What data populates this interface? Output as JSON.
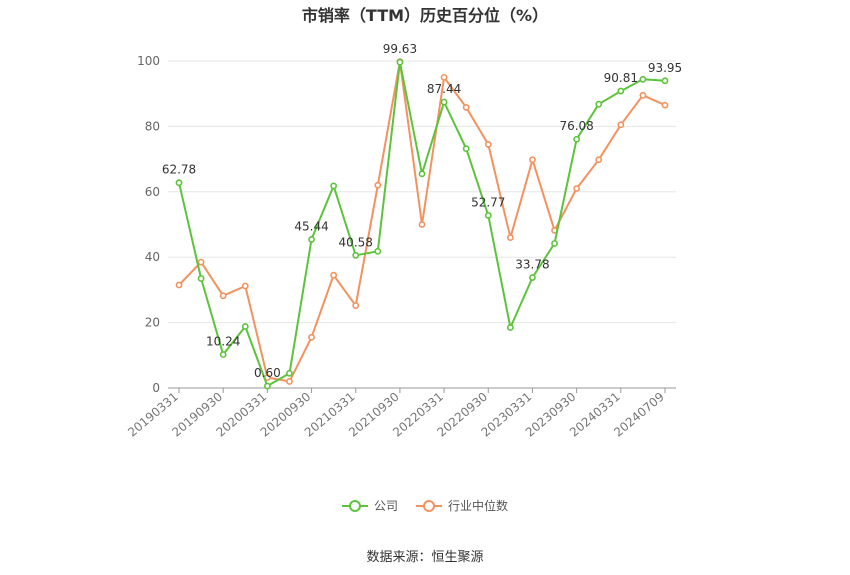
{
  "title": "市销率（TTM）历史百分位（%）",
  "source": "数据来源：恒生聚源",
  "colors": {
    "company": "#5cc43b",
    "industry": "#f4925f",
    "grid": "#e6e6e6",
    "axis": "#999999"
  },
  "chart_data": {
    "type": "line",
    "title": "市销率（TTM）历史百分位（%）",
    "ylim": [
      0,
      100
    ],
    "yticks": [
      0,
      20,
      40,
      60,
      80,
      100
    ],
    "x": [
      "20190331",
      "20190630",
      "20190930",
      "20191231",
      "20200331",
      "20200630",
      "20200930",
      "20201231",
      "20210331",
      "20210630",
      "20210930",
      "20211231",
      "20220331",
      "20220630",
      "20220930",
      "20221231",
      "20230331",
      "20230630",
      "20230930",
      "20231231",
      "20240331",
      "20240630",
      "20240709"
    ],
    "x_tick_labels": [
      "20190331",
      "20190930",
      "20200331",
      "20200930",
      "20210331",
      "20210930",
      "20220331",
      "20220930",
      "20230331",
      "20230930",
      "20240331",
      "20240709"
    ],
    "grid": true,
    "legend_position": "bottom",
    "series": [
      {
        "name": "公司",
        "color": "#5cc43b",
        "values": [
          62.78,
          33.5,
          10.24,
          18.8,
          0.6,
          4.5,
          45.44,
          61.8,
          40.58,
          41.8,
          99.63,
          65.5,
          87.44,
          73.2,
          52.77,
          18.5,
          33.78,
          44.2,
          76.08,
          86.8,
          90.81,
          94.4,
          93.95
        ],
        "labels": {
          "0": "62.78",
          "2": "10.24",
          "4": "0.60",
          "6": "45.44",
          "8": "40.58",
          "10": "99.63",
          "12": "87.44",
          "14": "52.77",
          "16": "33.78",
          "18": "76.08",
          "20": "90.81",
          "22": "93.95"
        }
      },
      {
        "name": "行业中位数",
        "color": "#f4925f",
        "values": [
          31.5,
          38.5,
          28.2,
          31.2,
          3.2,
          2.0,
          15.5,
          34.5,
          25.2,
          62.0,
          99.8,
          50.0,
          95.0,
          85.8,
          74.5,
          46.0,
          69.8,
          48.2,
          61.0,
          69.8,
          80.5,
          89.5,
          86.5
        ]
      }
    ]
  }
}
